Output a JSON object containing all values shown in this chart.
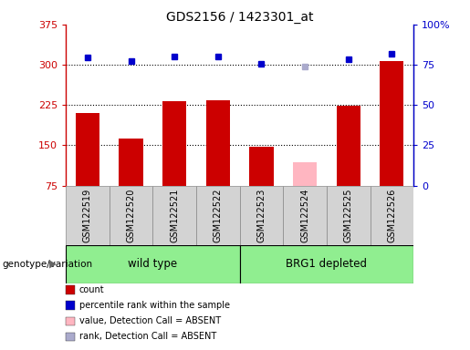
{
  "title": "GDS2156 / 1423301_at",
  "samples": [
    "GSM122519",
    "GSM122520",
    "GSM122521",
    "GSM122522",
    "GSM122523",
    "GSM122524",
    "GSM122525",
    "GSM122526"
  ],
  "bar_values": [
    210,
    163,
    232,
    234,
    148,
    null,
    223,
    307
  ],
  "bar_absent_values": [
    null,
    null,
    null,
    null,
    null,
    118,
    null,
    null
  ],
  "percentile_values": [
    313,
    307,
    316,
    315,
    302,
    null,
    311,
    320
  ],
  "percentile_absent_values": [
    null,
    null,
    null,
    null,
    null,
    296,
    null,
    null
  ],
  "bar_color": "#cc0000",
  "bar_absent_color": "#ffb6c1",
  "percentile_color": "#0000cc",
  "percentile_absent_color": "#aaaacc",
  "yticks_left": [
    75,
    150,
    225,
    300,
    375
  ],
  "yticks_right": [
    0,
    25,
    50,
    75,
    100
  ],
  "ylim_left": [
    75,
    375
  ],
  "ylim_right": [
    0,
    100
  ],
  "grid_values": [
    150,
    225,
    300
  ],
  "wild_type_indices": [
    0,
    1,
    2,
    3
  ],
  "brg1_indices": [
    4,
    5,
    6,
    7
  ],
  "wild_type_label": "wild type",
  "brg1_label": "BRG1 depleted",
  "group_label": "genotype/variation",
  "legend_items": [
    {
      "label": "count",
      "color": "#cc0000"
    },
    {
      "label": "percentile rank within the sample",
      "color": "#0000cc"
    },
    {
      "label": "value, Detection Call = ABSENT",
      "color": "#ffb6c1"
    },
    {
      "label": "rank, Detection Call = ABSENT",
      "color": "#aaaacc"
    }
  ],
  "bar_width": 0.55,
  "marker_size": 5,
  "fig_width": 5.15,
  "fig_height": 3.84
}
